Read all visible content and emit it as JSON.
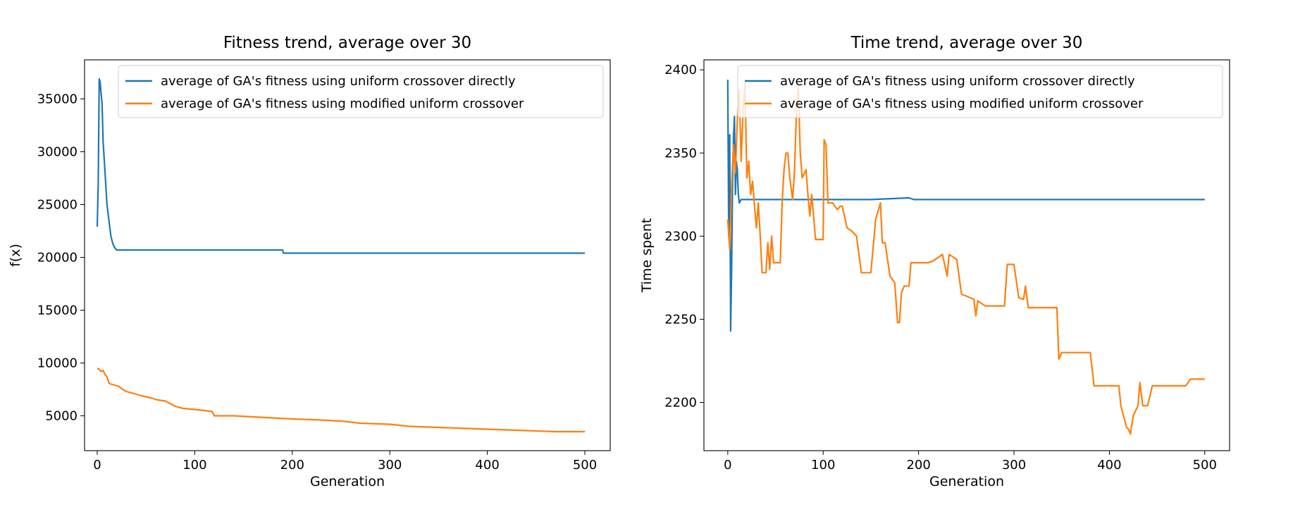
{
  "chart_data": [
    {
      "type": "line",
      "title": "Fitness trend, average over 30",
      "xlabel": "Generation",
      "ylabel": "f(x)",
      "xlim": [
        -13,
        526
      ],
      "ylim": [
        1700,
        38700
      ],
      "xticks": [
        0,
        100,
        200,
        300,
        400,
        500
      ],
      "yticks": [
        5000,
        10000,
        15000,
        20000,
        25000,
        30000,
        35000
      ],
      "legend": "top-right",
      "series": [
        {
          "name": "average of GA's fitness using uniform crossover directly",
          "color": "#1f77b4",
          "points": [
            [
              0,
              22900
            ],
            [
              1,
              27000
            ],
            [
              2,
              36900
            ],
            [
              3,
              36600
            ],
            [
              4,
              35500
            ],
            [
              5,
              34500
            ],
            [
              6,
              31000
            ],
            [
              8,
              28000
            ],
            [
              10,
              25000
            ],
            [
              12,
              23500
            ],
            [
              14,
              22000
            ],
            [
              16,
              21300
            ],
            [
              18,
              20900
            ],
            [
              20,
              20700
            ],
            [
              60,
              20700
            ],
            [
              120,
              20700
            ],
            [
              190,
              20700
            ],
            [
              191,
              20400
            ],
            [
              250,
              20400
            ],
            [
              350,
              20400
            ],
            [
              450,
              20400
            ],
            [
              500,
              20400
            ]
          ]
        },
        {
          "name": "average of GA's fitness using modified uniform crossover",
          "color": "#ff7f0e",
          "points": [
            [
              0,
              9500
            ],
            [
              2,
              9400
            ],
            [
              4,
              9200
            ],
            [
              6,
              9300
            ],
            [
              8,
              8900
            ],
            [
              10,
              8700
            ],
            [
              12,
              8100
            ],
            [
              14,
              8000
            ],
            [
              18,
              7900
            ],
            [
              22,
              7800
            ],
            [
              26,
              7500
            ],
            [
              30,
              7300
            ],
            [
              38,
              7100
            ],
            [
              45,
              6900
            ],
            [
              55,
              6700
            ],
            [
              62,
              6500
            ],
            [
              70,
              6400
            ],
            [
              80,
              5900
            ],
            [
              88,
              5700
            ],
            [
              100,
              5600
            ],
            [
              110,
              5500
            ],
            [
              118,
              5400
            ],
            [
              120,
              5000
            ],
            [
              140,
              5000
            ],
            [
              160,
              4900
            ],
            [
              180,
              4800
            ],
            [
              200,
              4700
            ],
            [
              230,
              4600
            ],
            [
              250,
              4500
            ],
            [
              270,
              4300
            ],
            [
              300,
              4200
            ],
            [
              320,
              4000
            ],
            [
              350,
              3900
            ],
            [
              380,
              3800
            ],
            [
              410,
              3700
            ],
            [
              440,
              3600
            ],
            [
              470,
              3500
            ],
            [
              500,
              3500
            ]
          ]
        }
      ]
    },
    {
      "type": "line",
      "title": "Time trend, average over 30",
      "xlabel": "Generation",
      "ylabel": "Time spent",
      "xlim": [
        -25,
        526
      ],
      "ylim": [
        2171,
        2406
      ],
      "xticks": [
        0,
        100,
        200,
        300,
        400,
        500
      ],
      "yticks": [
        2200,
        2250,
        2300,
        2350,
        2400
      ],
      "legend": "top-right",
      "series": [
        {
          "name": "average of GA's fitness using uniform crossover directly",
          "color": "#1f77b4",
          "points": [
            [
              0,
              2394
            ],
            [
              1,
              2300
            ],
            [
              2,
              2361
            ],
            [
              3,
              2243
            ],
            [
              4,
              2280
            ],
            [
              5,
              2330
            ],
            [
              6,
              2360
            ],
            [
              7,
              2372
            ],
            [
              8,
              2325
            ],
            [
              9,
              2345
            ],
            [
              10,
              2340
            ],
            [
              11,
              2326
            ],
            [
              12,
              2320
            ],
            [
              14,
              2322
            ],
            [
              16,
              2322
            ],
            [
              30,
              2322
            ],
            [
              60,
              2322
            ],
            [
              100,
              2322
            ],
            [
              150,
              2322
            ],
            [
              190,
              2323
            ],
            [
              195,
              2322
            ],
            [
              300,
              2322
            ],
            [
              400,
              2322
            ],
            [
              500,
              2322
            ]
          ]
        },
        {
          "name": "average of GA's fitness using modified uniform crossover",
          "color": "#ff7f0e",
          "points": [
            [
              0,
              2310
            ],
            [
              2,
              2292
            ],
            [
              4,
              2330
            ],
            [
              6,
              2355
            ],
            [
              8,
              2338
            ],
            [
              10,
              2370
            ],
            [
              12,
              2388
            ],
            [
              14,
              2345
            ],
            [
              16,
              2375
            ],
            [
              18,
              2392
            ],
            [
              20,
              2335
            ],
            [
              22,
              2345
            ],
            [
              24,
              2325
            ],
            [
              26,
              2333
            ],
            [
              28,
              2318
            ],
            [
              30,
              2305
            ],
            [
              32,
              2320
            ],
            [
              34,
              2300
            ],
            [
              36,
              2278
            ],
            [
              40,
              2278
            ],
            [
              42,
              2296
            ],
            [
              44,
              2280
            ],
            [
              46,
              2300
            ],
            [
              48,
              2284
            ],
            [
              55,
              2284
            ],
            [
              57,
              2320
            ],
            [
              59,
              2340
            ],
            [
              61,
              2350
            ],
            [
              63,
              2350
            ],
            [
              65,
              2335
            ],
            [
              68,
              2322
            ],
            [
              70,
              2340
            ],
            [
              72,
              2375
            ],
            [
              74,
              2390
            ],
            [
              76,
              2350
            ],
            [
              78,
              2335
            ],
            [
              82,
              2340
            ],
            [
              84,
              2325
            ],
            [
              86,
              2312
            ],
            [
              88,
              2325
            ],
            [
              92,
              2298
            ],
            [
              100,
              2298
            ],
            [
              101,
              2358
            ],
            [
              103,
              2355
            ],
            [
              105,
              2320
            ],
            [
              110,
              2320
            ],
            [
              112,
              2318
            ],
            [
              115,
              2316
            ],
            [
              118,
              2318
            ],
            [
              120,
              2318
            ],
            [
              125,
              2305
            ],
            [
              130,
              2303
            ],
            [
              135,
              2300
            ],
            [
              140,
              2278
            ],
            [
              145,
              2278
            ],
            [
              150,
              2278
            ],
            [
              155,
              2310
            ],
            [
              160,
              2320
            ],
            [
              162,
              2296
            ],
            [
              165,
              2296
            ],
            [
              170,
              2276
            ],
            [
              175,
              2272
            ],
            [
              178,
              2248
            ],
            [
              180,
              2248
            ],
            [
              182,
              2266
            ],
            [
              185,
              2270
            ],
            [
              190,
              2270
            ],
            [
              192,
              2284
            ],
            [
              210,
              2284
            ],
            [
              215,
              2285
            ],
            [
              225,
              2289
            ],
            [
              230,
              2276
            ],
            [
              232,
              2289
            ],
            [
              240,
              2286
            ],
            [
              245,
              2265
            ],
            [
              250,
              2264
            ],
            [
              258,
              2262
            ],
            [
              260,
              2252
            ],
            [
              262,
              2261
            ],
            [
              270,
              2258
            ],
            [
              280,
              2258
            ],
            [
              290,
              2258
            ],
            [
              293,
              2283
            ],
            [
              300,
              2283
            ],
            [
              305,
              2263
            ],
            [
              310,
              2262
            ],
            [
              312,
              2270
            ],
            [
              315,
              2257
            ],
            [
              320,
              2257
            ],
            [
              345,
              2257
            ],
            [
              347,
              2226
            ],
            [
              350,
              2230
            ],
            [
              360,
              2230
            ],
            [
              380,
              2230
            ],
            [
              384,
              2210
            ],
            [
              395,
              2210
            ],
            [
              410,
              2210
            ],
            [
              412,
              2198
            ],
            [
              418,
              2185
            ],
            [
              420,
              2184
            ],
            [
              422,
              2181
            ],
            [
              425,
              2192
            ],
            [
              430,
              2198
            ],
            [
              432,
              2212
            ],
            [
              435,
              2198
            ],
            [
              440,
              2198
            ],
            [
              445,
              2210
            ],
            [
              460,
              2210
            ],
            [
              480,
              2210
            ],
            [
              485,
              2214
            ],
            [
              500,
              2214
            ]
          ]
        }
      ]
    }
  ]
}
